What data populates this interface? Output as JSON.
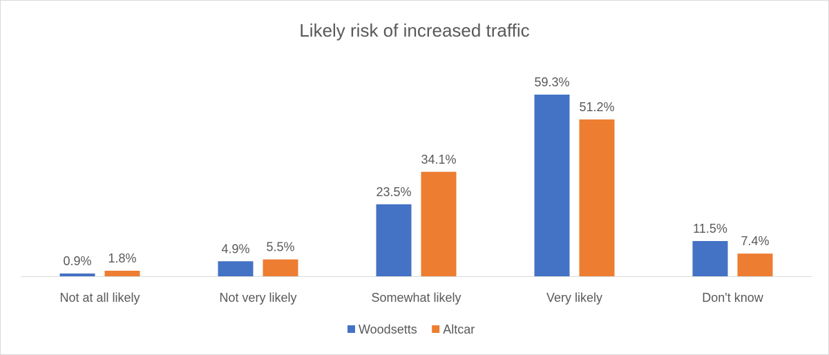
{
  "chart_data": {
    "type": "bar",
    "title": "Likely risk of increased traffic",
    "categories": [
      "Not at all likely",
      "Not very likely",
      "Somewhat likely",
      "Very likely",
      "Don't know"
    ],
    "series": [
      {
        "name": "Woodsetts",
        "color": "#4472c4",
        "values": [
          0.9,
          4.9,
          23.5,
          59.3,
          11.5
        ],
        "labels": [
          "0.9%",
          "4.9%",
          "23.5%",
          "59.3%",
          "11.5%"
        ]
      },
      {
        "name": "Altcar",
        "color": "#ed7d31",
        "values": [
          1.8,
          5.5,
          34.1,
          51.2,
          7.4
        ],
        "labels": [
          "1.8%",
          "5.5%",
          "34.1%",
          "51.2%",
          "7.4%"
        ]
      }
    ],
    "xlabel": "",
    "ylabel": "",
    "ylim": [
      0,
      60
    ],
    "grid": false,
    "legend": "bottom"
  }
}
